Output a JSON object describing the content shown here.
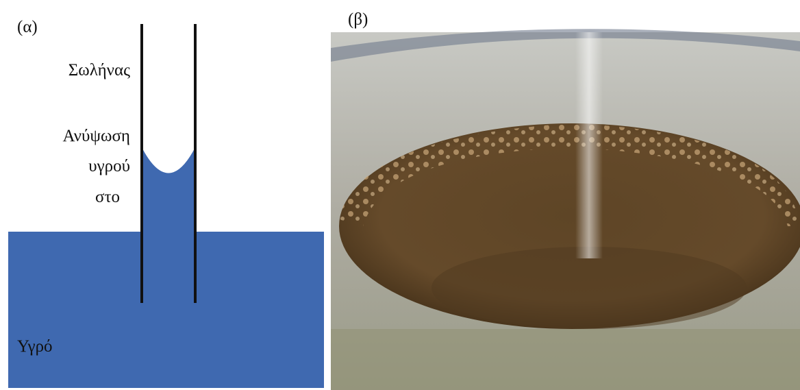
{
  "panel_a": {
    "label": "(α)",
    "tube_label": "Σωλήνας",
    "rise_label": [
      "Ανύψωση",
      "υγρού",
      "στο"
    ],
    "liquid_label": "Υγρό"
  },
  "panel_b": {
    "label": "(β)"
  }
}
